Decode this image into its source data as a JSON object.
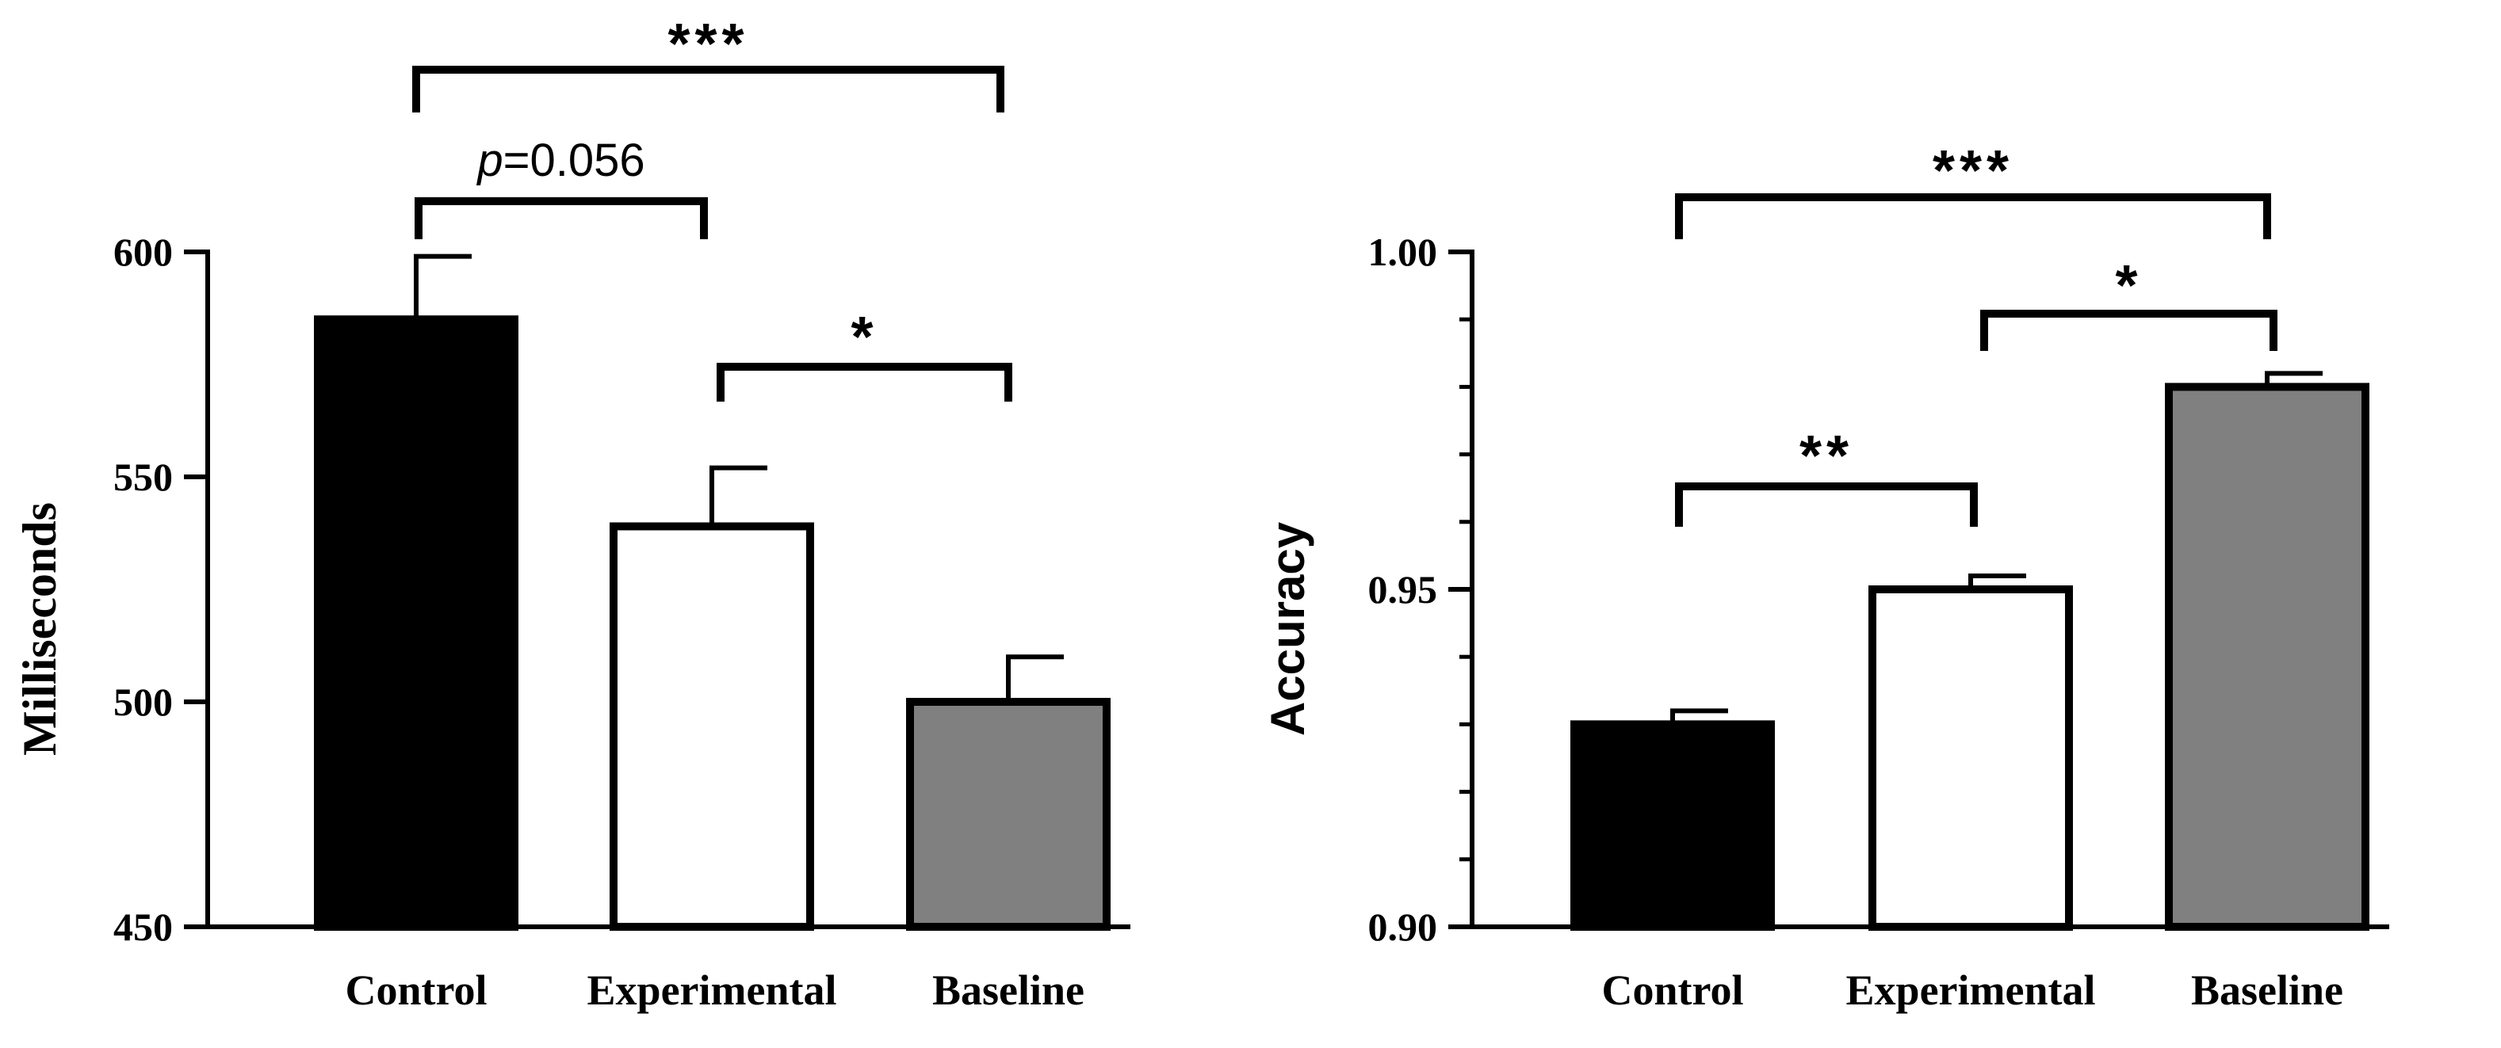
{
  "chart_data": [
    {
      "type": "bar",
      "ylabel": "Milliseconds",
      "xlabel": "",
      "categories": [
        "Control",
        "Experimental",
        "Baseline"
      ],
      "values": [
        585,
        539,
        500
      ],
      "errors": [
        14,
        13,
        10
      ],
      "ylim": [
        450,
        600
      ],
      "yticks": [
        450,
        500,
        550,
        600
      ],
      "ytick_labels": [
        "450",
        "500",
        "550",
        "600"
      ],
      "minor_ticks": false,
      "bar_colors": [
        "#000000",
        "#ffffff",
        "#808080"
      ],
      "significance": [
        {
          "from": 0,
          "to": 2,
          "label": "***"
        },
        {
          "from": 0,
          "to": 1,
          "label": "=0.056",
          "prefix": "p"
        },
        {
          "from": 1,
          "to": 2,
          "label": "*"
        }
      ]
    },
    {
      "type": "bar",
      "ylabel": "Accuracy",
      "xlabel": "",
      "categories": [
        "Control",
        "Experimental",
        "Baseline"
      ],
      "values": [
        0.93,
        0.95,
        0.98
      ],
      "errors": [
        0.002,
        0.002,
        0.002
      ],
      "ylim": [
        0.9,
        1.0
      ],
      "yticks": [
        0.9,
        0.95,
        1.0
      ],
      "ytick_labels": [
        "0.90",
        "0.95",
        "1.00"
      ],
      "minor_ticks": true,
      "bar_colors": [
        "#000000",
        "#ffffff",
        "#808080"
      ],
      "significance": [
        {
          "from": 0,
          "to": 2,
          "label": "***"
        },
        {
          "from": 1,
          "to": 2,
          "label": "*"
        },
        {
          "from": 0,
          "to": 1,
          "label": "**"
        }
      ]
    }
  ]
}
